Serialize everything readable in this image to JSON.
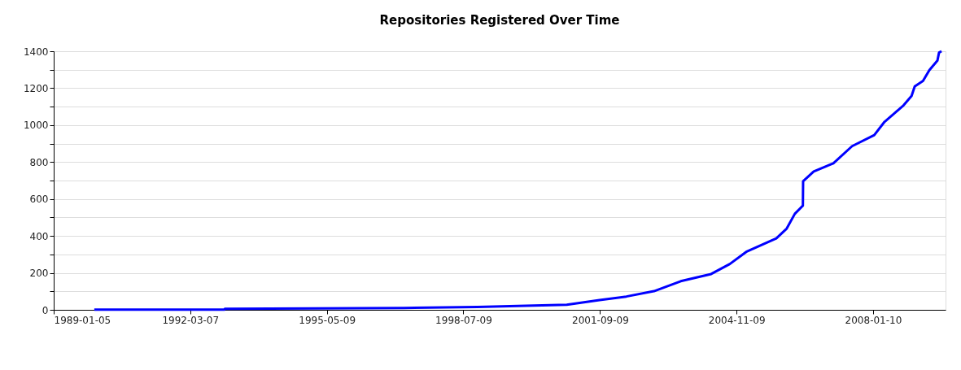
{
  "chart_data": {
    "type": "line",
    "title": "Repositories Registered Over Time",
    "x": [
      "1989-12-15",
      "1992-12-20",
      "1992-12-25",
      "1997-02-20",
      "1998-11-05",
      "1999-12-20",
      "2000-12-01",
      "2001-09-05",
      "2002-04-20",
      "2002-12-10",
      "2003-07-25",
      "2004-04-08",
      "2004-09-13",
      "2005-01-30",
      "2005-10-12",
      "2006-01-08",
      "2006-03-18",
      "2006-05-25",
      "2006-05-27",
      "2006-08-25",
      "2007-02-07",
      "2007-07-16",
      "2008-01-20",
      "2008-04-16",
      "2008-09-24",
      "2008-12-01",
      "2008-12-28",
      "2009-03-08",
      "2009-05-01",
      "2009-07-08",
      "2009-07-22",
      "2009-08-12"
    ],
    "series": [
      {
        "color": "#0000ff",
        "values": [
          1,
          1,
          5,
          10,
          15,
          22,
          28,
          53,
          72,
          101,
          155,
          194,
          248,
          314,
          387,
          440,
          520,
          564,
          696,
          749,
          793,
          886,
          946,
          1018,
          1107,
          1158,
          1210,
          1239,
          1298,
          1349,
          1393,
          1400
        ]
      }
    ],
    "xlim": [
      "1989-01-05",
      "2009-09-15"
    ],
    "xticks": [
      {
        "value": "1989-01-05",
        "label": "1989-01-05"
      },
      {
        "value": "1992-03-07",
        "label": "1992-03-07"
      },
      {
        "value": "1995-05-09",
        "label": "1995-05-09"
      },
      {
        "value": "1998-07-09",
        "label": "1998-07-09"
      },
      {
        "value": "2001-09-09",
        "label": "2001-09-09"
      },
      {
        "value": "2004-11-09",
        "label": "2004-11-09"
      },
      {
        "value": "2008-01-10",
        "label": "2008-01-10"
      }
    ],
    "ylim": [
      0,
      1400
    ],
    "yticks": [
      0,
      {
        "value": 100,
        "label": null
      },
      200,
      {
        "value": 300,
        "label": null
      },
      400,
      {
        "value": 500,
        "label": null
      },
      600,
      {
        "value": 700,
        "label": null
      },
      800,
      {
        "value": 900,
        "label": null
      },
      1000,
      {
        "value": 1100,
        "label": null
      },
      1200,
      {
        "value": 1300,
        "label": null
      },
      1400
    ],
    "grid": "y",
    "line_style": "solid"
  }
}
